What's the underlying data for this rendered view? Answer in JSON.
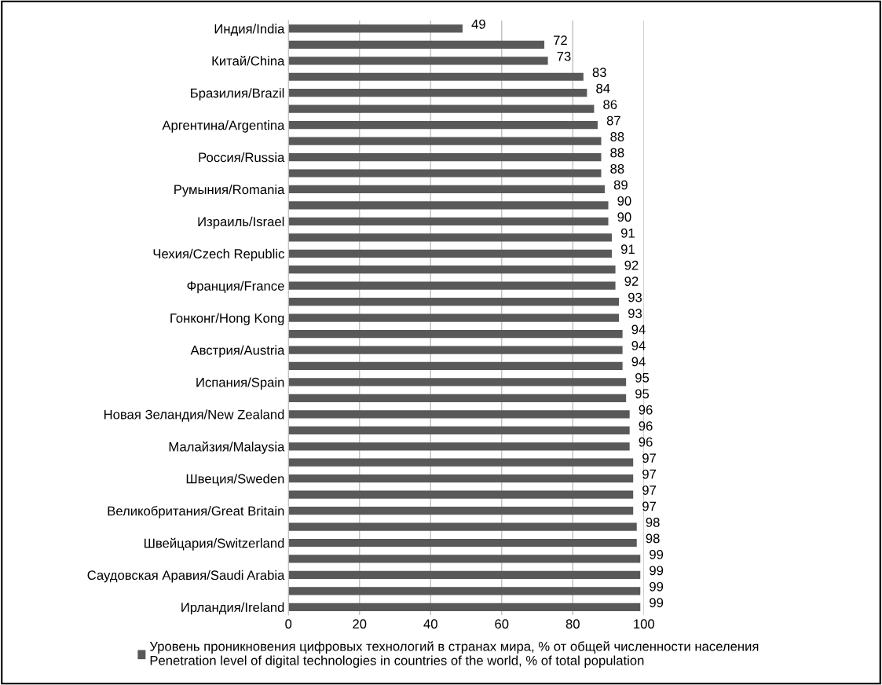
{
  "chart_data": {
    "type": "bar",
    "orientation": "horizontal",
    "categories": [
      "Индия/India",
      null,
      "Китай/China",
      null,
      "Бразилия/Brazil",
      null,
      "Аргентина/Argentina",
      null,
      "Россия/Russia",
      null,
      "Румыния/Romania",
      null,
      "Израиль/Israel",
      null,
      "Чехия/Czech Republic",
      null,
      "Франция/France",
      null,
      "Гонконг/Hong Kong",
      null,
      "Австрия/Austria",
      null,
      "Испания/Spain",
      null,
      "Новая Зеландия/New Zealand",
      null,
      "Малайзия/Malaysia",
      null,
      "Швеция/Sweden",
      null,
      "Великобритания/Great Britain",
      null,
      "Швейцария/Switzerland",
      null,
      "Саудовская Аравия/Saudi Arabia",
      null,
      "Ирландия/Ireland"
    ],
    "series": [
      {
        "name": "Уровень проникновения цифровых технологий в странах мира, % от общей численности населения\nPenetration level of digital technologies in countries of the world, % of total population",
        "color": "#595959",
        "values": [
          49,
          72,
          73,
          83,
          84,
          86,
          87,
          88,
          88,
          88,
          89,
          90,
          90,
          91,
          91,
          92,
          92,
          93,
          93,
          94,
          94,
          94,
          95,
          95,
          96,
          96,
          96,
          97,
          97,
          97,
          97,
          98,
          98,
          99,
          99,
          99,
          99
        ]
      }
    ],
    "xlim": [
      0,
      100
    ],
    "xticks": [
      0,
      20,
      40,
      60,
      80,
      100
    ],
    "grid": "x",
    "legend": "bottom",
    "data_labels": true
  }
}
